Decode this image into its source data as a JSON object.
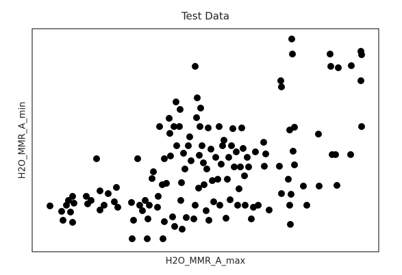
{
  "chart_data": {
    "type": "scatter",
    "title": "Test Data",
    "x_label": "H2O_MMR_A_max",
    "y_label": "H2O_MMR_A_min",
    "color": "#000000",
    "xlim": [
      0,
      506
    ],
    "ylim": [
      0,
      326
    ],
    "x": [
      26,
      43,
      45,
      50,
      53,
      56,
      59,
      59,
      61,
      79,
      81,
      86,
      94,
      99,
      99,
      105,
      111,
      120,
      123,
      125,
      145,
      146,
      148,
      154,
      157,
      161,
      165,
      168,
      169,
      171,
      175,
      177,
      183,
      184,
      186,
      190,
      191,
      193,
      193,
      196,
      200,
      201,
      202,
      205,
      207,
      208,
      210,
      211,
      215,
      216,
      217,
      218,
      219,
      221,
      223,
      225,
      228,
      230,
      232,
      236,
      238,
      238,
      240,
      241,
      243,
      244,
      245,
      246,
      248,
      250,
      251,
      254,
      255,
      257,
      258,
      261,
      263,
      265,
      268,
      271,
      273,
      274,
      276,
      278,
      280,
      283,
      285,
      287,
      289,
      291,
      293,
      295,
      298,
      300,
      302,
      304,
      306,
      308,
      310,
      311,
      314,
      316,
      320,
      323,
      326,
      330,
      338,
      339,
      341,
      346,
      361,
      363,
      364,
      364,
      374,
      376,
      376,
      377,
      378,
      379,
      380,
      381,
      383,
      383,
      396,
      401,
      418,
      419,
      435,
      436,
      438,
      443,
      445,
      447,
      465,
      466,
      480,
      481,
      480,
      481
    ],
    "y": [
      67,
      59,
      46,
      68,
      75,
      58,
      43,
      81,
      71,
      81,
      70,
      75,
      136,
      89,
      61,
      68,
      85,
      73,
      94,
      65,
      72,
      19,
      46,
      136,
      68,
      60,
      75,
      19,
      48,
      68,
      107,
      117,
      65,
      81,
      183,
      98,
      19,
      44,
      136,
      100,
      195,
      173,
      140,
      51,
      183,
      37,
      219,
      155,
      183,
      208,
      75,
      101,
      33,
      144,
      121,
      50,
      155,
      168,
      133,
      48,
      271,
      68,
      196,
      225,
      93,
      141,
      183,
      210,
      155,
      130,
      98,
      60,
      121,
      181,
      46,
      150,
      104,
      73,
      138,
      106,
      183,
      68,
      128,
      155,
      163,
      49,
      106,
      138,
      76,
      155,
      180,
      124,
      146,
      68,
      92,
      124,
      181,
      151,
      111,
      68,
      138,
      124,
      48,
      65,
      146,
      68,
      160,
      125,
      143,
      61,
      125,
      250,
      85,
      241,
      106,
      68,
      178,
      40,
      84,
      311,
      289,
      147,
      182,
      127,
      96,
      68,
      172,
      96,
      289,
      271,
      142,
      142,
      97,
      269,
      142,
      272,
      293,
      288,
      250,
      183
    ]
  }
}
